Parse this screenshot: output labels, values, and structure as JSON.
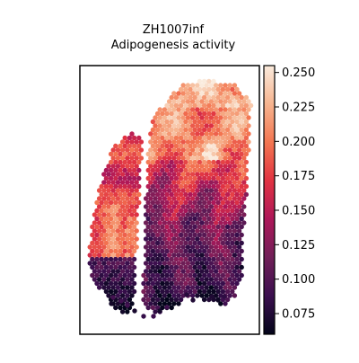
{
  "figure": {
    "title_lines": [
      "ZH1007inf",
      "Adipogenesis activity"
    ]
  },
  "chart_data": {
    "type": "heatmap",
    "title": "ZH1007inf\nAdipogenesis activity",
    "subtitle": "",
    "xlabel": "",
    "ylabel": "",
    "axes_ticks_visible": false,
    "grid": false,
    "colormap": "rocket",
    "colormap_stops": [
      "#03051a",
      "#3b0f4f",
      "#701f57",
      "#ad1759",
      "#e13342",
      "#f37651",
      "#f6b48f",
      "#faebdd"
    ],
    "colorbar": {
      "position": "right",
      "range": [
        0.06,
        0.255
      ],
      "ticks": [
        0.075,
        0.1,
        0.125,
        0.15,
        0.175,
        0.2,
        0.225,
        0.25
      ],
      "tick_labels": [
        "0.075",
        "0.100",
        "0.125",
        "0.150",
        "0.175",
        "0.200",
        "0.225",
        "0.250"
      ]
    },
    "spot_pattern": "hexagonal",
    "tissue_regions": [
      {
        "name": "right lobe, upper",
        "value_range": [
          0.19,
          0.25
        ],
        "typical": 0.215
      },
      {
        "name": "right lobe, middle",
        "value_range": [
          0.11,
          0.18
        ],
        "typical": 0.15
      },
      {
        "name": "right lobe, lower",
        "value_range": [
          0.06,
          0.13
        ],
        "typical": 0.1
      },
      {
        "name": "left strip, middle",
        "value_range": [
          0.16,
          0.22
        ],
        "typical": 0.19
      },
      {
        "name": "left strip, bottom",
        "value_range": [
          0.06,
          0.11
        ],
        "typical": 0.085
      }
    ]
  }
}
